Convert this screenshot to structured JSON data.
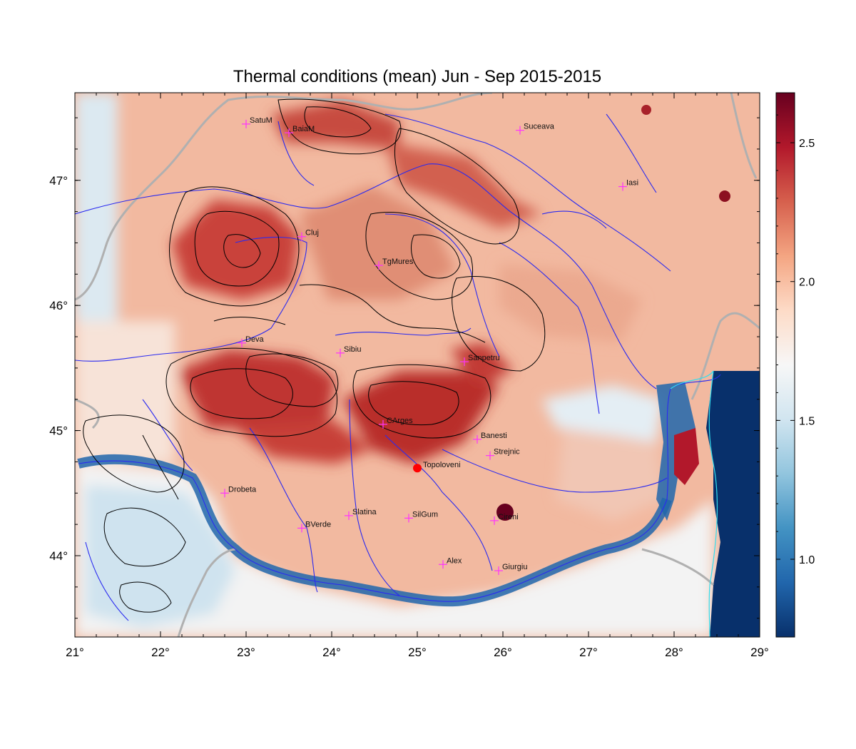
{
  "title": "Thermal conditions (mean) Jun - Sep  2015-2015",
  "map": {
    "lon_range": [
      21,
      29
    ],
    "lat_range": [
      43.35,
      47.7
    ],
    "lon_ticks": [
      {
        "value": 21,
        "label": "21°"
      },
      {
        "value": 22,
        "label": "22°"
      },
      {
        "value": 23,
        "label": "23°"
      },
      {
        "value": 24,
        "label": "24°"
      },
      {
        "value": 25,
        "label": "25°"
      },
      {
        "value": 26,
        "label": "26°"
      },
      {
        "value": 27,
        "label": "27°"
      },
      {
        "value": 28,
        "label": "28°"
      },
      {
        "value": 29,
        "label": "29°"
      }
    ],
    "lat_ticks": [
      {
        "value": 44,
        "label": "44°"
      },
      {
        "value": 45,
        "label": "45°"
      },
      {
        "value": 46,
        "label": "46°"
      },
      {
        "value": 47,
        "label": "47°"
      }
    ],
    "cities": [
      {
        "name": "SatuM",
        "lon": 23.0,
        "lat": 47.45
      },
      {
        "name": "BaiaM",
        "lon": 23.5,
        "lat": 47.38
      },
      {
        "name": "Suceava",
        "lon": 26.2,
        "lat": 47.4
      },
      {
        "name": "Iasi",
        "lon": 27.4,
        "lat": 46.95
      },
      {
        "name": "Cluj",
        "lon": 23.65,
        "lat": 46.55
      },
      {
        "name": "TgMures",
        "lon": 24.55,
        "lat": 46.32
      },
      {
        "name": "Deva",
        "lon": 22.95,
        "lat": 45.7
      },
      {
        "name": "Sibiu",
        "lon": 24.1,
        "lat": 45.62
      },
      {
        "name": "Sanpetru",
        "lon": 25.55,
        "lat": 45.55
      },
      {
        "name": "CArges",
        "lon": 24.6,
        "lat": 45.05
      },
      {
        "name": "Banesti",
        "lon": 25.7,
        "lat": 44.93
      },
      {
        "name": "Strejnic",
        "lon": 25.85,
        "lat": 44.8
      },
      {
        "name": "Drobeta",
        "lon": 22.75,
        "lat": 44.5
      },
      {
        "name": "Slatina",
        "lon": 24.2,
        "lat": 44.32
      },
      {
        "name": "SilGum",
        "lon": 24.9,
        "lat": 44.3
      },
      {
        "name": "Calarasi",
        "lon": 25.9,
        "lat": 44.28,
        "label": "Cireni"
      },
      {
        "name": "BVerde",
        "lon": 23.65,
        "lat": 44.22
      },
      {
        "name": "Alex",
        "lon": 25.3,
        "lat": 43.93
      },
      {
        "name": "Giurgiu",
        "lon": 25.95,
        "lat": 43.88
      }
    ],
    "highlight_station": {
      "name": "Topoloveni",
      "lon": 25.0,
      "lat": 44.7,
      "color": "#ff0000"
    }
  },
  "colorbar": {
    "min": 0.72,
    "max": 2.68,
    "ticks": [
      {
        "value": 1.0,
        "label": "1.0"
      },
      {
        "value": 1.5,
        "label": "1.5"
      },
      {
        "value": 2.0,
        "label": "2.0"
      },
      {
        "value": 2.5,
        "label": "2.5"
      }
    ],
    "colors": [
      "#08306b",
      "#2166ac",
      "#4393c3",
      "#92c5de",
      "#d1e5f0",
      "#f7f7f7",
      "#fddbc7",
      "#f4a582",
      "#d6604d",
      "#b2182b",
      "#67001f"
    ]
  },
  "colors": {
    "river": "#2a2af0",
    "contour": "#000000",
    "border": "#b0b0b0",
    "marker": "#ff33ff",
    "sea": "#08306b"
  }
}
